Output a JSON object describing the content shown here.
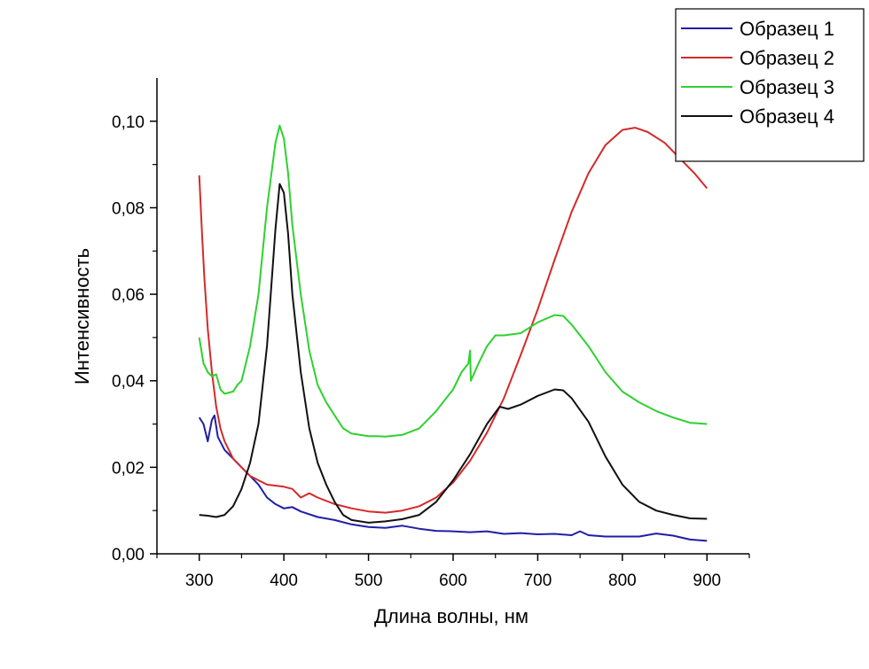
{
  "chart_data": {
    "type": "line",
    "title": "",
    "xlabel": "Длина волны, нм",
    "ylabel": "Интенсивность",
    "xlim": [
      250,
      950
    ],
    "ylim": [
      0,
      0.11
    ],
    "xticks": [
      {
        "value": 300,
        "label": "300"
      },
      {
        "value": 400,
        "label": "400"
      },
      {
        "value": 500,
        "label": "500"
      },
      {
        "value": 600,
        "label": "600"
      },
      {
        "value": 700,
        "label": "700"
      },
      {
        "value": 800,
        "label": "800"
      },
      {
        "value": 900,
        "label": "900"
      }
    ],
    "yticks": [
      {
        "value": 0.0,
        "label": "0,00"
      },
      {
        "value": 0.02,
        "label": "0,02"
      },
      {
        "value": 0.04,
        "label": "0,04"
      },
      {
        "value": 0.06,
        "label": "0,06"
      },
      {
        "value": 0.08,
        "label": "0,08"
      },
      {
        "value": 0.1,
        "label": "0,10"
      }
    ],
    "grid": false,
    "legend_position": "top-right",
    "series": [
      {
        "name": "Образец 1",
        "color": "#1f1fa8",
        "points": [
          [
            300,
            0.0315
          ],
          [
            305,
            0.03
          ],
          [
            310,
            0.026
          ],
          [
            315,
            0.031
          ],
          [
            318,
            0.032
          ],
          [
            322,
            0.027
          ],
          [
            330,
            0.024
          ],
          [
            340,
            0.022
          ],
          [
            350,
            0.02
          ],
          [
            360,
            0.018
          ],
          [
            370,
            0.016
          ],
          [
            380,
            0.013
          ],
          [
            390,
            0.0115
          ],
          [
            400,
            0.0105
          ],
          [
            410,
            0.0108
          ],
          [
            420,
            0.0098
          ],
          [
            440,
            0.0085
          ],
          [
            460,
            0.0078
          ],
          [
            480,
            0.0068
          ],
          [
            500,
            0.0062
          ],
          [
            520,
            0.006
          ],
          [
            540,
            0.0065
          ],
          [
            560,
            0.0058
          ],
          [
            580,
            0.0053
          ],
          [
            600,
            0.0052
          ],
          [
            620,
            0.005
          ],
          [
            640,
            0.0052
          ],
          [
            660,
            0.0046
          ],
          [
            680,
            0.0048
          ],
          [
            700,
            0.0045
          ],
          [
            720,
            0.0046
          ],
          [
            740,
            0.0043
          ],
          [
            750,
            0.0052
          ],
          [
            760,
            0.0043
          ],
          [
            780,
            0.004
          ],
          [
            800,
            0.004
          ],
          [
            820,
            0.004
          ],
          [
            840,
            0.0047
          ],
          [
            860,
            0.0042
          ],
          [
            880,
            0.0033
          ],
          [
            900,
            0.003
          ]
        ]
      },
      {
        "name": "Образец 2",
        "color": "#d42a2a",
        "points": [
          [
            300,
            0.0875
          ],
          [
            303,
            0.075
          ],
          [
            306,
            0.064
          ],
          [
            310,
            0.052
          ],
          [
            315,
            0.042
          ],
          [
            320,
            0.034
          ],
          [
            325,
            0.029
          ],
          [
            330,
            0.026
          ],
          [
            340,
            0.022
          ],
          [
            350,
            0.02
          ],
          [
            360,
            0.018
          ],
          [
            370,
            0.017
          ],
          [
            380,
            0.016
          ],
          [
            400,
            0.0155
          ],
          [
            410,
            0.015
          ],
          [
            420,
            0.013
          ],
          [
            430,
            0.014
          ],
          [
            440,
            0.013
          ],
          [
            460,
            0.0115
          ],
          [
            480,
            0.0105
          ],
          [
            500,
            0.0098
          ],
          [
            520,
            0.0095
          ],
          [
            540,
            0.01
          ],
          [
            560,
            0.011
          ],
          [
            580,
            0.013
          ],
          [
            600,
            0.0165
          ],
          [
            620,
            0.0215
          ],
          [
            640,
            0.028
          ],
          [
            660,
            0.036
          ],
          [
            680,
            0.046
          ],
          [
            700,
            0.0565
          ],
          [
            720,
            0.068
          ],
          [
            740,
            0.079
          ],
          [
            760,
            0.088
          ],
          [
            780,
            0.0945
          ],
          [
            800,
            0.098
          ],
          [
            815,
            0.0985
          ],
          [
            830,
            0.0975
          ],
          [
            850,
            0.095
          ],
          [
            870,
            0.091
          ],
          [
            885,
            0.088
          ],
          [
            900,
            0.0845
          ]
        ]
      },
      {
        "name": "Образец 3",
        "color": "#2fd12f",
        "points": [
          [
            300,
            0.05
          ],
          [
            305,
            0.044
          ],
          [
            310,
            0.042
          ],
          [
            315,
            0.041
          ],
          [
            320,
            0.0415
          ],
          [
            325,
            0.038
          ],
          [
            330,
            0.037
          ],
          [
            340,
            0.0375
          ],
          [
            345,
            0.039
          ],
          [
            350,
            0.04
          ],
          [
            360,
            0.048
          ],
          [
            370,
            0.06
          ],
          [
            380,
            0.08
          ],
          [
            390,
            0.095
          ],
          [
            395,
            0.099
          ],
          [
            400,
            0.096
          ],
          [
            405,
            0.088
          ],
          [
            410,
            0.076
          ],
          [
            420,
            0.06
          ],
          [
            430,
            0.047
          ],
          [
            440,
            0.039
          ],
          [
            450,
            0.035
          ],
          [
            460,
            0.032
          ],
          [
            470,
            0.029
          ],
          [
            480,
            0.0278
          ],
          [
            490,
            0.0275
          ],
          [
            500,
            0.0272
          ],
          [
            510,
            0.0272
          ],
          [
            520,
            0.0271
          ],
          [
            540,
            0.0275
          ],
          [
            560,
            0.029
          ],
          [
            580,
            0.033
          ],
          [
            600,
            0.038
          ],
          [
            610,
            0.042
          ],
          [
            618,
            0.044
          ],
          [
            620,
            0.047
          ],
          [
            621,
            0.04
          ],
          [
            630,
            0.044
          ],
          [
            640,
            0.048
          ],
          [
            650,
            0.0505
          ],
          [
            660,
            0.0505
          ],
          [
            680,
            0.051
          ],
          [
            700,
            0.0535
          ],
          [
            720,
            0.0552
          ],
          [
            730,
            0.055
          ],
          [
            740,
            0.053
          ],
          [
            760,
            0.048
          ],
          [
            780,
            0.042
          ],
          [
            800,
            0.0375
          ],
          [
            820,
            0.035
          ],
          [
            840,
            0.033
          ],
          [
            860,
            0.0315
          ],
          [
            880,
            0.0303
          ],
          [
            900,
            0.03
          ]
        ]
      },
      {
        "name": "Образец 4",
        "color": "#111111",
        "points": [
          [
            300,
            0.009
          ],
          [
            310,
            0.0088
          ],
          [
            320,
            0.0085
          ],
          [
            330,
            0.009
          ],
          [
            340,
            0.011
          ],
          [
            350,
            0.015
          ],
          [
            360,
            0.021
          ],
          [
            370,
            0.03
          ],
          [
            380,
            0.048
          ],
          [
            390,
            0.075
          ],
          [
            395,
            0.0855
          ],
          [
            400,
            0.0835
          ],
          [
            405,
            0.074
          ],
          [
            410,
            0.06
          ],
          [
            420,
            0.042
          ],
          [
            430,
            0.029
          ],
          [
            440,
            0.021
          ],
          [
            450,
            0.016
          ],
          [
            460,
            0.012
          ],
          [
            470,
            0.009
          ],
          [
            480,
            0.0078
          ],
          [
            500,
            0.0072
          ],
          [
            520,
            0.0075
          ],
          [
            540,
            0.008
          ],
          [
            560,
            0.009
          ],
          [
            580,
            0.012
          ],
          [
            600,
            0.017
          ],
          [
            620,
            0.023
          ],
          [
            640,
            0.03
          ],
          [
            655,
            0.034
          ],
          [
            665,
            0.0335
          ],
          [
            680,
            0.0345
          ],
          [
            700,
            0.0365
          ],
          [
            720,
            0.038
          ],
          [
            730,
            0.0378
          ],
          [
            740,
            0.036
          ],
          [
            760,
            0.0305
          ],
          [
            780,
            0.0225
          ],
          [
            800,
            0.016
          ],
          [
            820,
            0.012
          ],
          [
            840,
            0.01
          ],
          [
            860,
            0.009
          ],
          [
            880,
            0.0082
          ],
          [
            900,
            0.0081
          ]
        ]
      }
    ]
  }
}
